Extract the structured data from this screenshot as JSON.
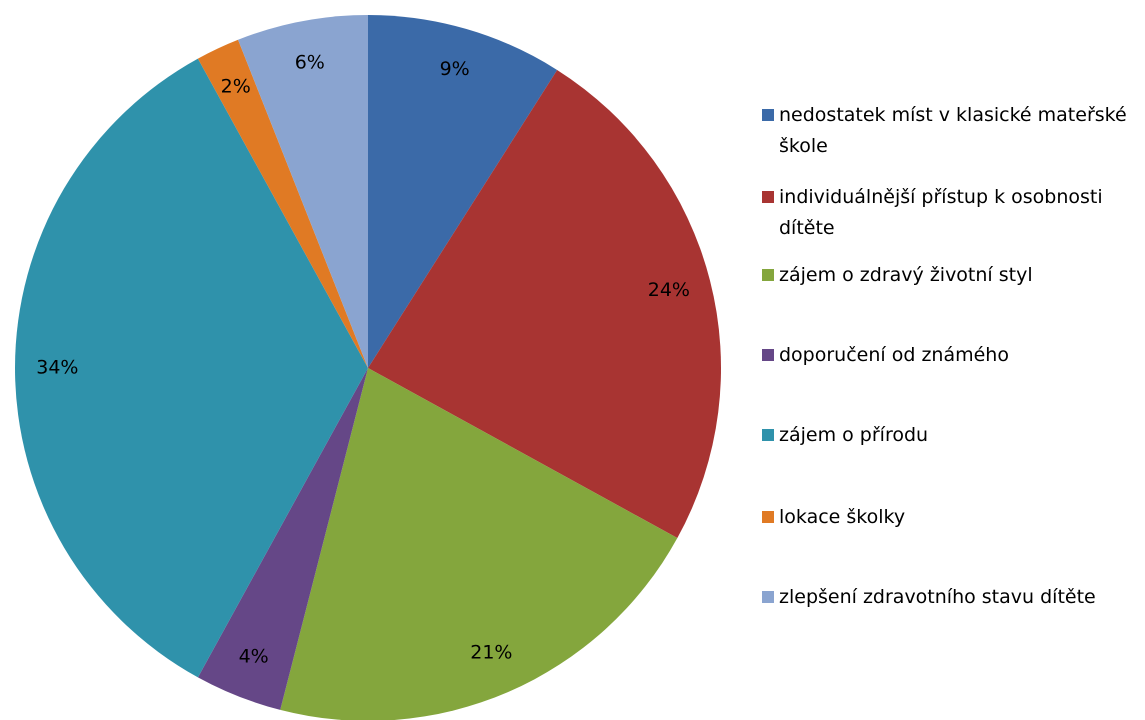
{
  "chart_data": {
    "type": "pie",
    "categories": [
      "nedostatek míst v klasické mateřské škole",
      "individuálnější přístup k osobnosti dítěte",
      "zájem o zdravý životní styl",
      "doporučení od známého",
      "zájem o přírodu",
      "lokace školky",
      "zlepšení zdravotního stavu dítěte"
    ],
    "values": [
      9,
      24,
      21,
      4,
      34,
      2,
      6
    ],
    "value_labels": [
      "9%",
      "24%",
      "21%",
      "4%",
      "34%",
      "2%",
      "6%"
    ],
    "colors": [
      "#3b6aa8",
      "#a83432",
      "#84a63d",
      "#654787",
      "#2f92ab",
      "#e07a24",
      "#8aa4d0"
    ],
    "legend": "right"
  }
}
